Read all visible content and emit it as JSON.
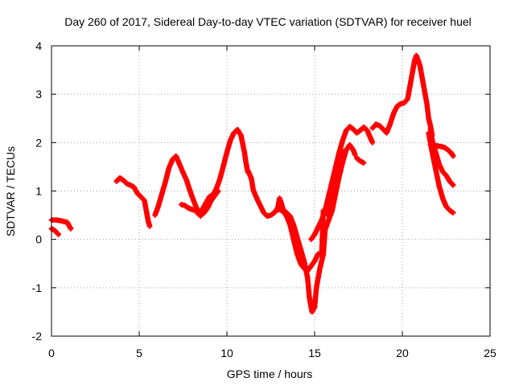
{
  "chart_data": {
    "type": "scatter",
    "title": "Day 260 of 2017, Sidereal Day-to-day VTEC variation (SDTVAR) for receiver huel",
    "xlabel": "GPS time / hours",
    "ylabel": "SDTVAR / TECUs",
    "xlim": [
      0,
      25
    ],
    "ylim": [
      -2,
      4
    ],
    "xticks": [
      "0",
      "5",
      "10",
      "15",
      "20",
      "25"
    ],
    "yticks": [
      "-2",
      "-1",
      "0",
      "1",
      "2",
      "3",
      "4"
    ],
    "grid": true,
    "marker": "+",
    "color": "#ff0000",
    "series": [
      {
        "name": "SDTVAR",
        "segments": [
          [
            [
              0.0,
              0.4
            ],
            [
              0.3,
              0.4
            ],
            [
              0.6,
              0.38
            ],
            [
              0.9,
              0.35
            ],
            [
              1.1,
              0.22
            ]
          ],
          [
            [
              0.0,
              0.22
            ],
            [
              0.2,
              0.18
            ],
            [
              0.4,
              0.1
            ]
          ],
          [
            [
              3.7,
              1.2
            ],
            [
              3.9,
              1.27
            ],
            [
              4.1,
              1.22
            ],
            [
              4.3,
              1.15
            ],
            [
              4.5,
              1.12
            ],
            [
              4.7,
              1.08
            ],
            [
              4.9,
              0.95
            ],
            [
              5.1,
              0.88
            ],
            [
              5.3,
              0.8
            ],
            [
              5.4,
              0.6
            ],
            [
              5.5,
              0.4
            ],
            [
              5.6,
              0.27
            ]
          ],
          [
            [
              5.9,
              0.5
            ],
            [
              6.1,
              0.7
            ],
            [
              6.3,
              0.95
            ],
            [
              6.5,
              1.2
            ],
            [
              6.7,
              1.48
            ],
            [
              6.9,
              1.65
            ],
            [
              7.1,
              1.72
            ],
            [
              7.3,
              1.55
            ],
            [
              7.5,
              1.38
            ],
            [
              7.7,
              1.22
            ],
            [
              7.9,
              1.0
            ],
            [
              8.1,
              0.8
            ],
            [
              8.3,
              0.62
            ],
            [
              8.5,
              0.48
            ]
          ],
          [
            [
              7.4,
              0.72
            ],
            [
              7.6,
              0.7
            ],
            [
              7.8,
              0.65
            ],
            [
              8.0,
              0.62
            ],
            [
              8.2,
              0.6
            ],
            [
              8.4,
              0.55
            ],
            [
              8.6,
              0.62
            ],
            [
              8.8,
              0.75
            ],
            [
              9.0,
              0.88
            ],
            [
              9.2,
              0.92
            ],
            [
              9.4,
              1.05
            ],
            [
              9.6,
              1.25
            ],
            [
              9.8,
              1.52
            ],
            [
              10.0,
              1.8
            ],
            [
              10.2,
              2.05
            ],
            [
              10.4,
              2.2
            ],
            [
              10.6,
              2.27
            ],
            [
              10.8,
              2.15
            ],
            [
              11.0,
              1.8
            ],
            [
              11.1,
              1.55
            ],
            [
              11.2,
              1.38
            ]
          ],
          [
            [
              8.3,
              0.55
            ],
            [
              8.5,
              0.5
            ],
            [
              8.7,
              0.55
            ],
            [
              8.9,
              0.65
            ],
            [
              9.1,
              0.8
            ],
            [
              9.3,
              0.9
            ],
            [
              9.5,
              1.0
            ]
          ],
          [
            [
              11.2,
              1.42
            ],
            [
              11.4,
              1.25
            ],
            [
              11.5,
              1.02
            ],
            [
              11.7,
              0.85
            ],
            [
              11.9,
              0.7
            ],
            [
              12.1,
              0.55
            ],
            [
              12.3,
              0.48
            ],
            [
              12.5,
              0.5
            ],
            [
              12.7,
              0.55
            ],
            [
              12.9,
              0.65
            ],
            [
              13.0,
              0.85
            ],
            [
              13.1,
              0.75
            ],
            [
              13.2,
              0.62
            ],
            [
              13.4,
              0.55
            ],
            [
              13.6,
              0.48
            ],
            [
              13.8,
              0.3
            ],
            [
              14.0,
              0.05
            ],
            [
              14.2,
              -0.2
            ],
            [
              14.4,
              -0.45
            ],
            [
              14.6,
              -0.8
            ],
            [
              14.7,
              -1.2
            ],
            [
              14.85,
              -1.5
            ],
            [
              15.0,
              -1.4
            ],
            [
              15.1,
              -1.0
            ],
            [
              15.3,
              -0.6
            ],
            [
              15.5,
              -0.3
            ],
            [
              15.6,
              0.2
            ],
            [
              15.8,
              0.4
            ],
            [
              16.0,
              0.6
            ],
            [
              16.2,
              0.95
            ],
            [
              16.4,
              1.3
            ],
            [
              16.6,
              1.6
            ],
            [
              16.8,
              1.85
            ],
            [
              17.0,
              1.95
            ],
            [
              17.2,
              1.85
            ],
            [
              17.3,
              1.75
            ]
          ],
          [
            [
              12.8,
              0.6
            ],
            [
              13.0,
              0.62
            ],
            [
              13.2,
              0.58
            ],
            [
              13.4,
              0.48
            ],
            [
              13.6,
              0.3
            ],
            [
              13.8,
              0.0
            ],
            [
              14.0,
              -0.3
            ],
            [
              14.2,
              -0.5
            ],
            [
              14.4,
              -0.6
            ],
            [
              14.6,
              -0.65
            ],
            [
              14.8,
              -0.55
            ],
            [
              15.0,
              -0.45
            ],
            [
              15.2,
              -0.3
            ],
            [
              15.4,
              -0.3
            ],
            [
              15.5,
              0.6
            ],
            [
              15.6,
              0.55
            ],
            [
              15.8,
              0.5
            ],
            [
              15.9,
              0.62
            ],
            [
              16.0,
              0.9
            ],
            [
              16.2,
              1.3
            ],
            [
              16.4,
              1.7
            ],
            [
              16.5,
              1.85
            ]
          ],
          [
            [
              14.8,
              0.0
            ],
            [
              15.0,
              0.1
            ],
            [
              15.2,
              0.25
            ],
            [
              15.4,
              0.4
            ],
            [
              15.6,
              0.6
            ],
            [
              15.8,
              0.9
            ],
            [
              16.0,
              1.2
            ],
            [
              16.2,
              1.5
            ],
            [
              16.4,
              1.8
            ],
            [
              16.6,
              2.05
            ],
            [
              16.8,
              2.25
            ],
            [
              17.0,
              2.33
            ],
            [
              17.2,
              2.28
            ],
            [
              17.4,
              2.2
            ],
            [
              17.6,
              2.25
            ],
            [
              17.8,
              2.32
            ],
            [
              18.0,
              2.25
            ],
            [
              18.2,
              2.08
            ],
            [
              18.3,
              2.0
            ]
          ],
          [
            [
              17.4,
              1.68
            ],
            [
              17.6,
              1.62
            ],
            [
              17.8,
              1.58
            ]
          ],
          [
            [
              18.3,
              2.3
            ],
            [
              18.5,
              2.38
            ],
            [
              18.7,
              2.35
            ],
            [
              18.9,
              2.28
            ],
            [
              19.1,
              2.2
            ],
            [
              19.3,
              2.38
            ],
            [
              19.5,
              2.6
            ],
            [
              19.7,
              2.75
            ],
            [
              19.9,
              2.8
            ],
            [
              20.1,
              2.82
            ],
            [
              20.3,
              2.9
            ],
            [
              20.5,
              3.3
            ],
            [
              20.7,
              3.7
            ],
            [
              20.8,
              3.8
            ],
            [
              21.0,
              3.6
            ],
            [
              21.2,
              3.2
            ],
            [
              21.4,
              2.8
            ],
            [
              21.5,
              2.5
            ],
            [
              21.6,
              2.35
            ],
            [
              21.7,
              2.15
            ]
          ],
          [
            [
              21.6,
              2.3
            ],
            [
              21.7,
              2.05
            ],
            [
              21.9,
              1.8
            ],
            [
              22.1,
              1.55
            ],
            [
              22.3,
              1.4
            ],
            [
              22.5,
              1.32
            ],
            [
              22.7,
              1.2
            ],
            [
              22.9,
              1.12
            ]
          ],
          [
            [
              21.6,
              1.95
            ],
            [
              21.8,
              1.95
            ],
            [
              22.0,
              1.93
            ],
            [
              22.2,
              1.92
            ],
            [
              22.4,
              1.9
            ],
            [
              22.6,
              1.85
            ],
            [
              22.8,
              1.78
            ],
            [
              22.9,
              1.72
            ]
          ],
          [
            [
              21.5,
              2.2
            ],
            [
              21.7,
              1.8
            ],
            [
              21.9,
              1.45
            ],
            [
              22.1,
              1.1
            ],
            [
              22.3,
              0.85
            ],
            [
              22.5,
              0.68
            ],
            [
              22.7,
              0.6
            ],
            [
              22.9,
              0.55
            ]
          ]
        ]
      }
    ]
  }
}
